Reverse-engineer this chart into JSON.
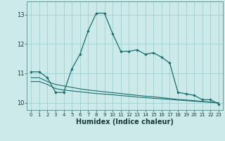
{
  "title": "",
  "xlabel": "Humidex (Indice chaleur)",
  "ylabel": "",
  "background_color": "#cceaea",
  "grid_color": "#9fcfcf",
  "line_color": "#1a6e6e",
  "x_values": [
    0,
    1,
    2,
    3,
    4,
    5,
    6,
    7,
    8,
    9,
    10,
    11,
    12,
    13,
    14,
    15,
    16,
    17,
    18,
    19,
    20,
    21,
    22,
    23
  ],
  "line1_y": [
    11.05,
    11.05,
    10.85,
    10.35,
    10.35,
    11.15,
    11.65,
    12.45,
    13.05,
    13.05,
    12.35,
    11.75,
    11.75,
    11.8,
    11.65,
    11.7,
    11.55,
    11.35,
    10.35,
    10.3,
    10.25,
    10.1,
    10.1,
    9.95
  ],
  "line3_y": [
    10.85,
    10.85,
    10.72,
    10.62,
    10.57,
    10.52,
    10.47,
    10.43,
    10.4,
    10.37,
    10.34,
    10.31,
    10.28,
    10.25,
    10.22,
    10.2,
    10.17,
    10.14,
    10.11,
    10.09,
    10.07,
    10.04,
    10.02,
    10.0
  ],
  "line4_y": [
    10.72,
    10.72,
    10.62,
    10.48,
    10.43,
    10.4,
    10.37,
    10.34,
    10.31,
    10.29,
    10.27,
    10.24,
    10.22,
    10.19,
    10.17,
    10.15,
    10.13,
    10.11,
    10.09,
    10.07,
    10.05,
    10.03,
    10.01,
    9.99
  ],
  "ylim_bottom": 9.75,
  "ylim_top": 13.45,
  "xlim_left": -0.5,
  "xlim_right": 23.5,
  "yticks": [
    10,
    11,
    12,
    13
  ],
  "xticks": [
    0,
    1,
    2,
    3,
    4,
    5,
    6,
    7,
    8,
    9,
    10,
    11,
    12,
    13,
    14,
    15,
    16,
    17,
    18,
    19,
    20,
    21,
    22,
    23
  ],
  "xlabel_fontsize": 7,
  "ytick_fontsize": 6,
  "xtick_fontsize": 5
}
